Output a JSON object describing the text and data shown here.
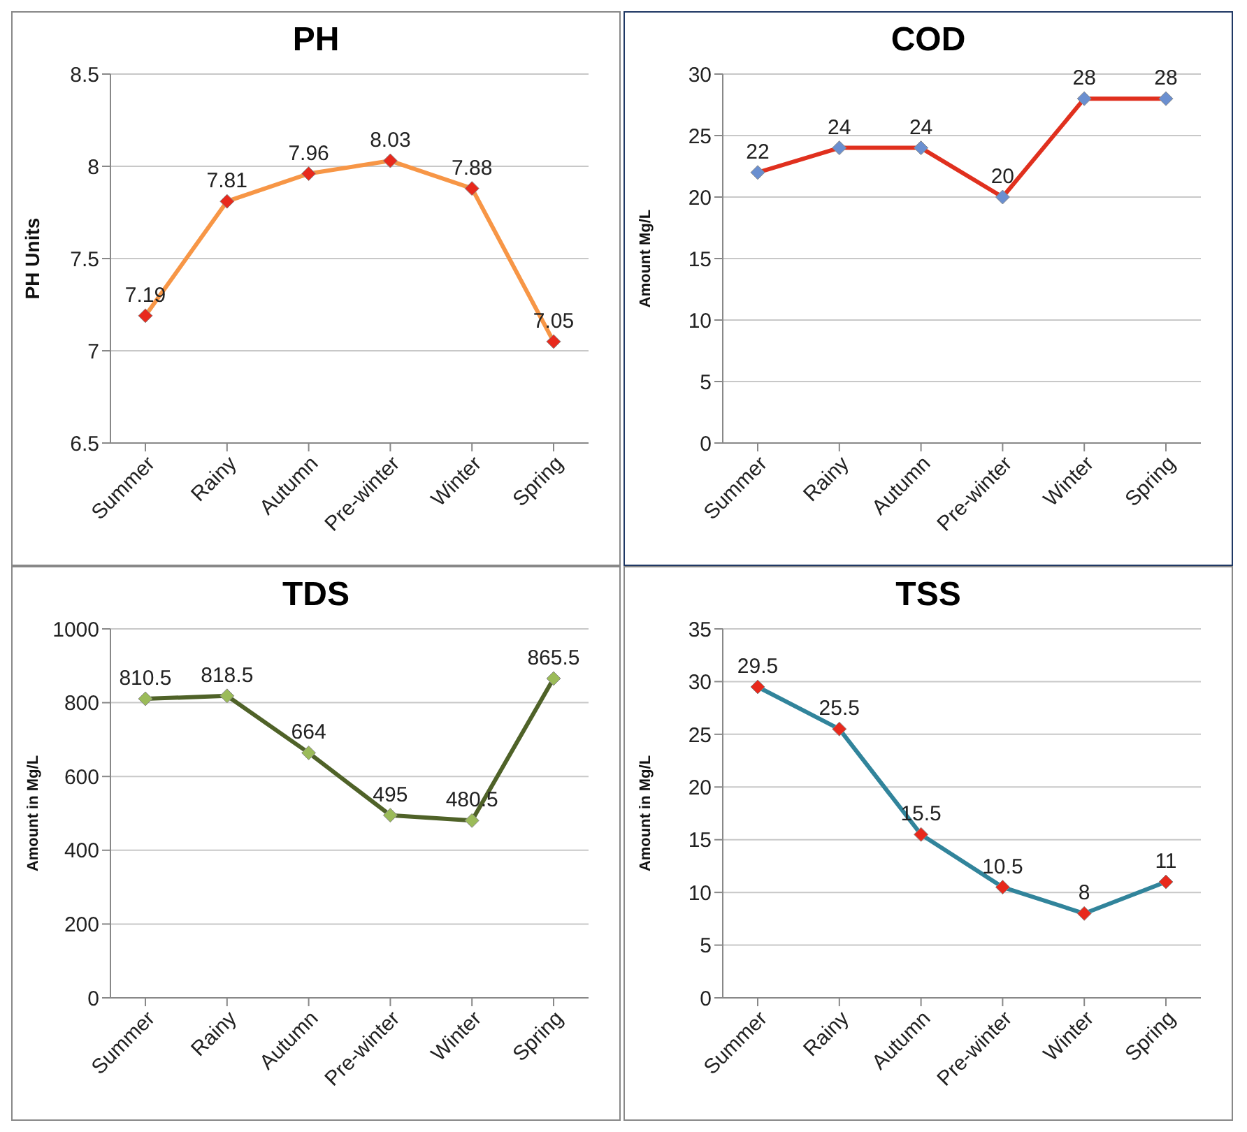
{
  "chart_data": [
    {
      "type": "line",
      "title": "PH",
      "ylabel": "PH Units",
      "categories": [
        "Summer",
        "Rainy",
        "Autumn",
        "Pre-winter",
        "Winter",
        "Spring"
      ],
      "series": [
        {
          "color": "#f79646",
          "colors": [
            "#e8291c",
            "#e8291c",
            "#e8291c",
            "#e8291c",
            "#e8291c",
            "#e8291c"
          ],
          "values": [
            7.19,
            7.81,
            7.96,
            8.03,
            7.88,
            7.05
          ]
        }
      ],
      "ylim": [
        6.5,
        8.5
      ],
      "yticks": [
        6.5,
        7,
        7.5,
        8,
        8.5
      ],
      "grid": "y",
      "marker": "diamond",
      "data_labels": true
    },
    {
      "type": "line",
      "title": "COD",
      "ylabel": "Amount Mg/L",
      "categories": [
        "Summer",
        "Rainy",
        "Autumn",
        "Pre-winter",
        "Winter",
        "Spring"
      ],
      "series": [
        {
          "color": "#e0301e",
          "colors": [
            "#6a8fd0",
            "#6a8fd0",
            "#6a8fd0",
            "#6a8fd0",
            "#6a8fd0",
            "#6a8fd0"
          ],
          "values": [
            22,
            24,
            24,
            20,
            28,
            28
          ]
        }
      ],
      "ylim": [
        0,
        30
      ],
      "yticks": [
        0,
        5,
        10,
        15,
        20,
        25,
        30
      ],
      "grid": "y",
      "marker": "diamond",
      "data_labels": true
    },
    {
      "type": "line",
      "title": "TDS",
      "ylabel": "Amount in Mg/L",
      "categories": [
        "Summer",
        "Rainy",
        "Autumn",
        "Pre-winter",
        "Winter",
        "Spring"
      ],
      "series": [
        {
          "color": "#4f6228",
          "colors": [
            "#9bbb59",
            "#9bbb59",
            "#9bbb59",
            "#9bbb59",
            "#9bbb59",
            "#9bbb59"
          ],
          "values": [
            810.5,
            818.5,
            664,
            495,
            480.5,
            865.5
          ]
        }
      ],
      "ylim": [
        0,
        1000
      ],
      "yticks": [
        0,
        200,
        400,
        600,
        800,
        1000
      ],
      "grid": "y",
      "marker": "diamond",
      "data_labels": true
    },
    {
      "type": "line",
      "title": "TSS",
      "ylabel": "Amount in Mg/L",
      "categories": [
        "Summer",
        "Rainy",
        "Autumn",
        "Pre-winter",
        "Winter",
        "Spring"
      ],
      "series": [
        {
          "color": "#31849b",
          "colors": [
            "#e8291c",
            "#e8291c",
            "#e8291c",
            "#e8291c",
            "#e8291c",
            "#e8291c"
          ],
          "values": [
            29.5,
            25.5,
            15.5,
            10.5,
            8,
            11
          ]
        }
      ],
      "ylim": [
        0,
        35
      ],
      "yticks": [
        0,
        5,
        10,
        15,
        20,
        25,
        30,
        35
      ],
      "grid": "y",
      "marker": "diamond",
      "data_labels": true
    }
  ]
}
